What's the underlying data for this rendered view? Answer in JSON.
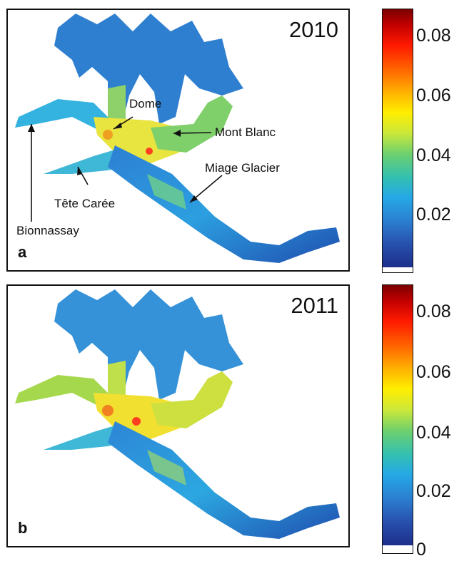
{
  "panels": [
    {
      "id": "a",
      "year": "2010",
      "letter": "a"
    },
    {
      "id": "b",
      "year": "2011",
      "letter": "b"
    }
  ],
  "annotations": {
    "dome": "Dome",
    "mont_blanc": "Mont Blanc",
    "miage_glacier": "Miage Glacier",
    "tete_caree": "Tête Carée",
    "bionnassay": "Bionnassay"
  },
  "colorbar": {
    "ticks_a": [
      "0.08",
      "0.06",
      "0.04",
      "0.02"
    ],
    "ticks_b": [
      "0.08",
      "0.06",
      "0.04",
      "0.02",
      "0"
    ],
    "colors": [
      "#7a0000",
      "#ff1a00",
      "#ffb000",
      "#ffee00",
      "#6ed06d",
      "#25a8e6",
      "#2750ad",
      "#1d2f8c"
    ]
  }
}
